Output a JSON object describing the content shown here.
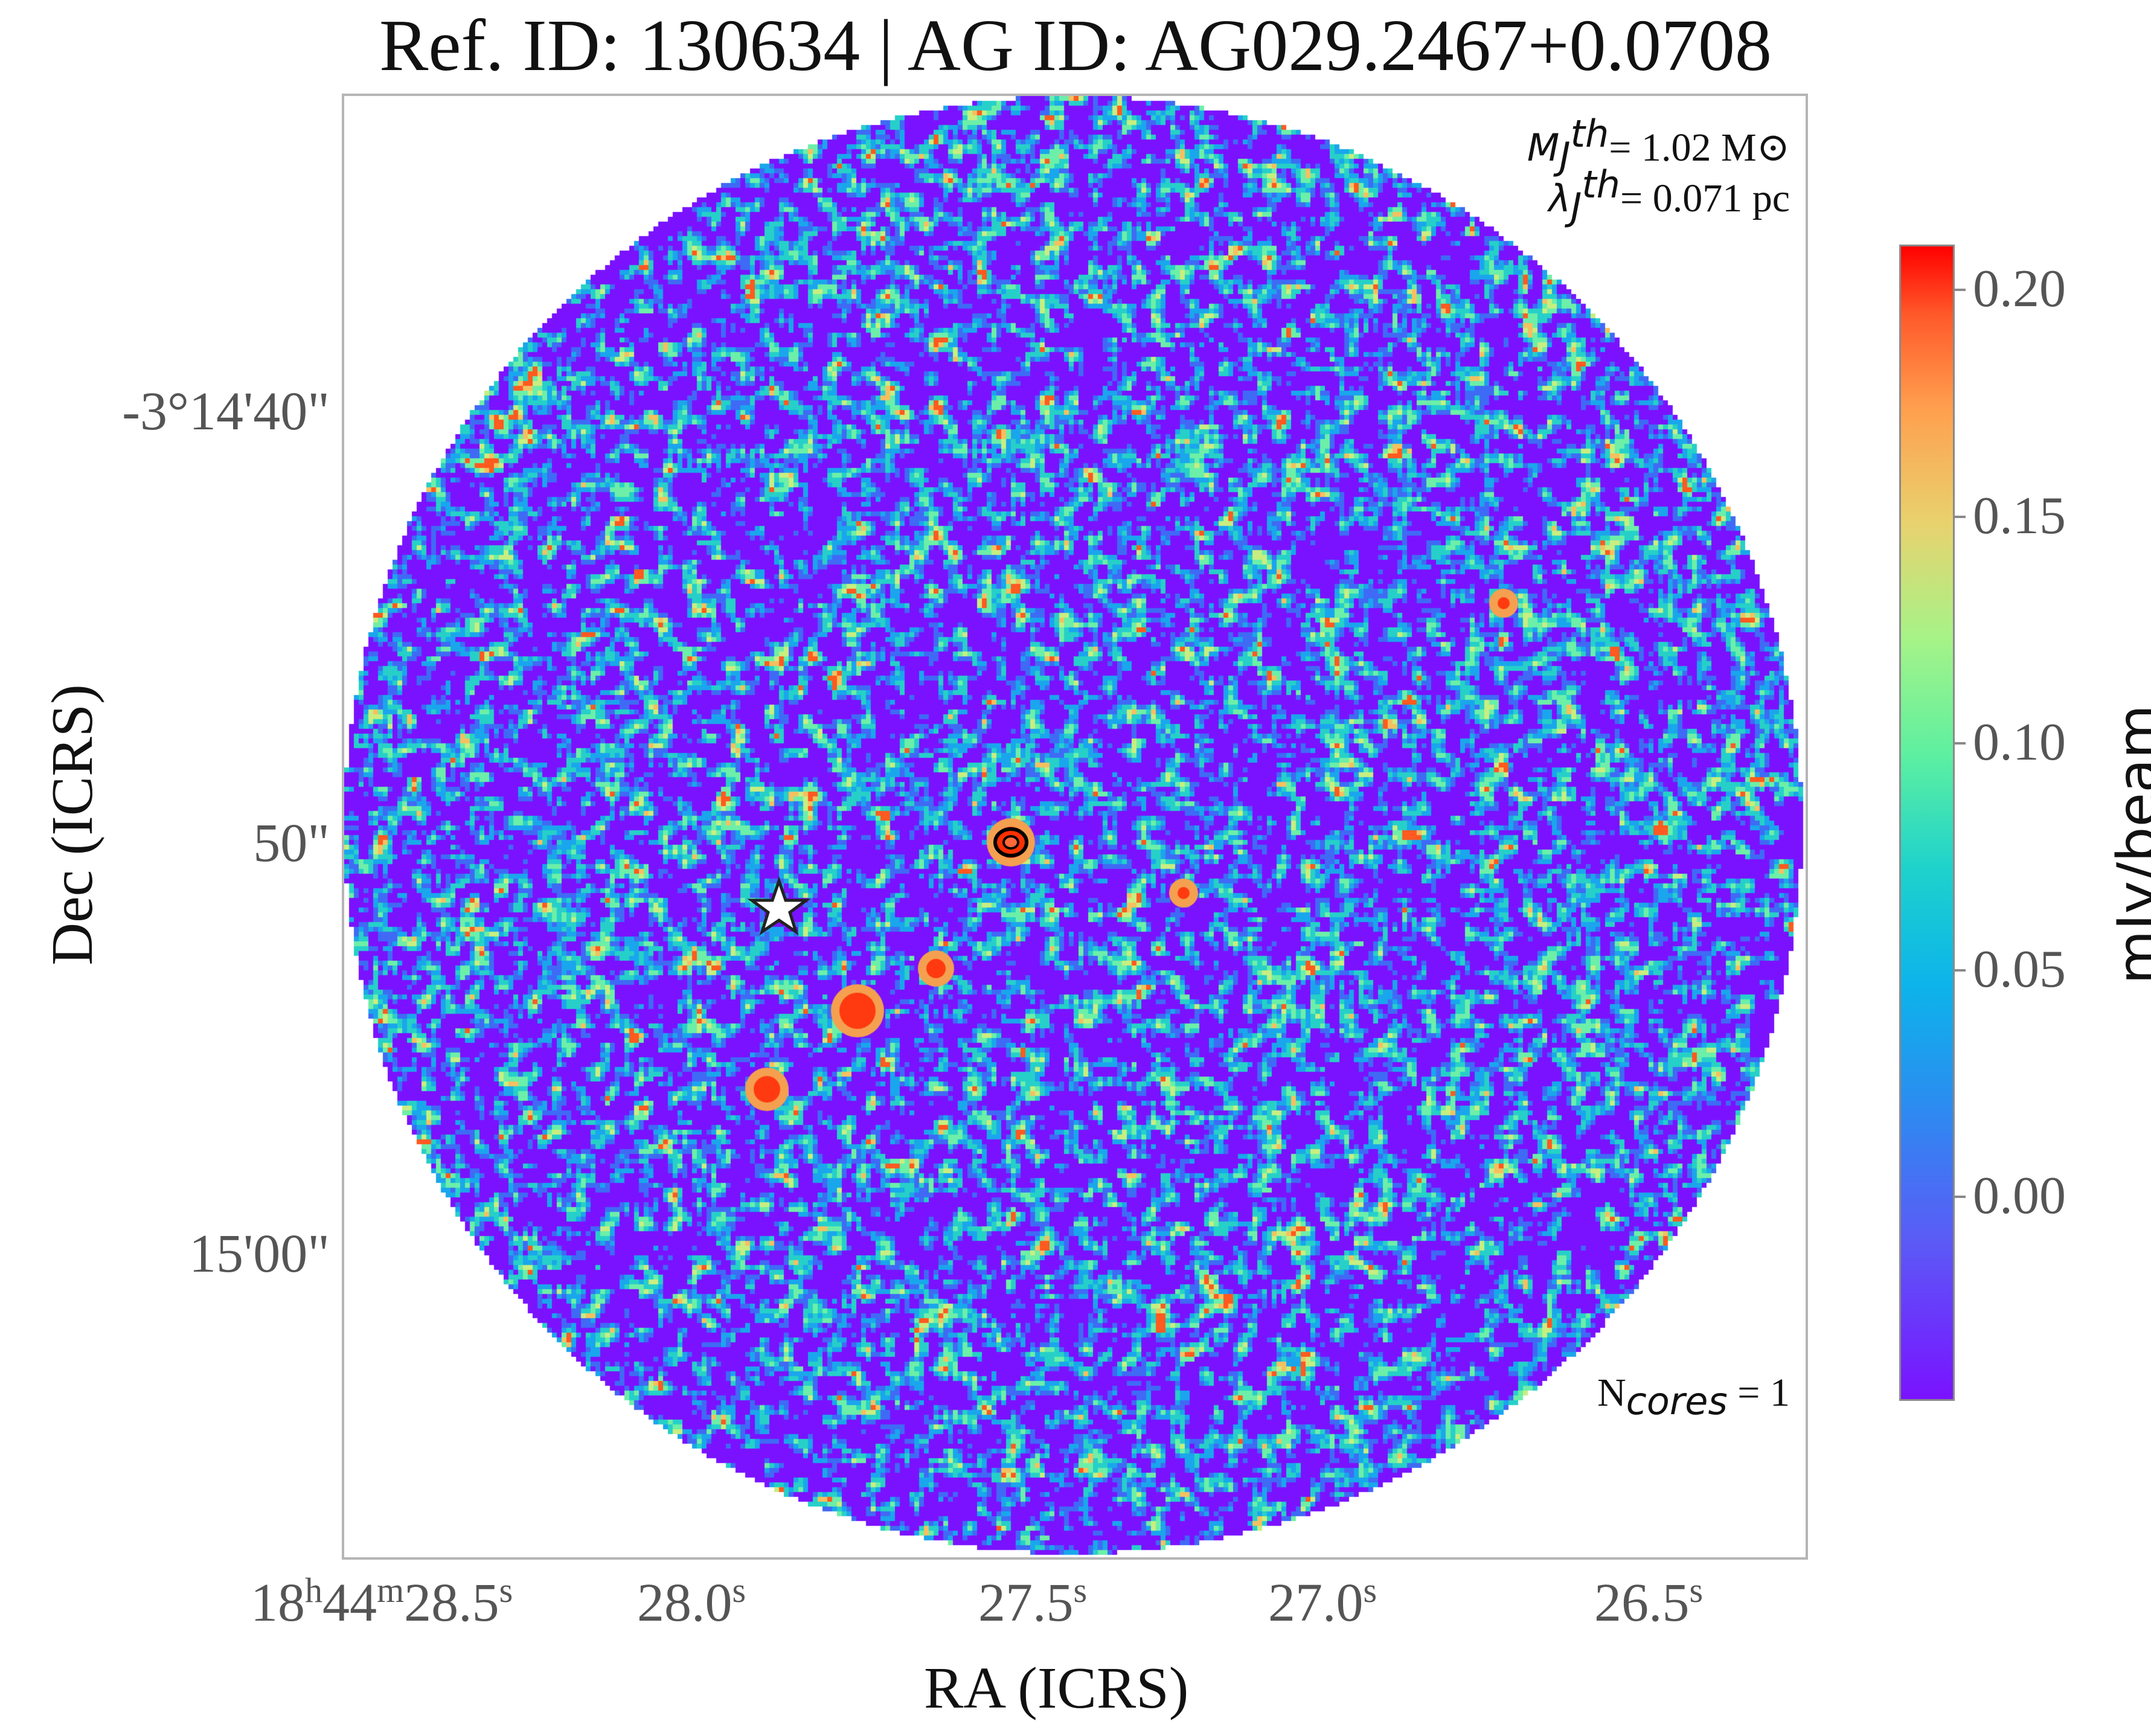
{
  "title": "Ref. ID: 130634 | AG ID: AG029.2467+0.0708",
  "annotations": {
    "jeans_mass_symbol": "M",
    "jeans_mass_sub": "J",
    "jeans_mass_sup": "th",
    "jeans_mass_value": "= 1.02 M⊙",
    "jeans_length_symbol": "λ",
    "jeans_length_sub": "J",
    "jeans_length_sup": "th",
    "jeans_length_value": "= 0.071 pc",
    "ncores_prefix": "N",
    "ncores_sub": "cores",
    "ncores_value": " = 1"
  },
  "axes": {
    "xlabel": "RA (ICRS)",
    "ylabel": "Dec (ICRS)",
    "yticks": [
      "-3°14'40\"",
      "50\"",
      "15'00\""
    ],
    "xticks": [
      {
        "h": "18",
        "hs": "h",
        "m": "44",
        "ms": "m",
        "s": "28.5",
        "ss": "s"
      },
      {
        "s": "28.0",
        "ss": "s"
      },
      {
        "s": "27.5",
        "ss": "s"
      },
      {
        "s": "27.0",
        "ss": "s"
      },
      {
        "s": "26.5",
        "ss": "s"
      }
    ]
  },
  "colorbar": {
    "label": "mJy/beam",
    "ticks": [
      "0.20",
      "0.15",
      "0.10",
      "0.05",
      "0.00"
    ],
    "tick_values": [
      0.2,
      0.15,
      0.1,
      0.05,
      0.0
    ],
    "range": [
      -0.045,
      0.21
    ],
    "colormap": "rainbow"
  },
  "markers": {
    "star_icon": "star-icon"
  },
  "colors": {
    "background_field": "#7a12ff",
    "frame": "#b5b5b5",
    "core_contour": "#000000"
  }
}
